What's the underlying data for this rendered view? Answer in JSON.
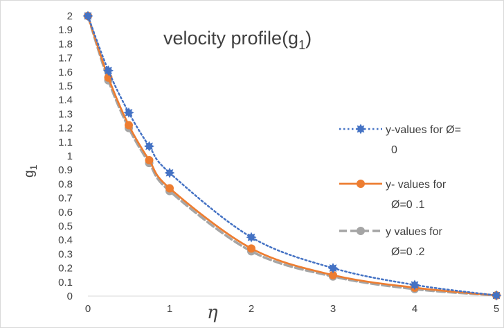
{
  "chart_data": {
    "type": "line",
    "title": "velocity profile(g",
    "title_subscript": "1",
    "title_suffix": ")",
    "xlabel": "η",
    "ylabel": "g",
    "ylabel_subscript": "1",
    "xlim": [
      0,
      5
    ],
    "ylim": [
      0,
      2
    ],
    "x_ticks": [
      "0",
      "1",
      "2",
      "3",
      "4",
      "5"
    ],
    "y_ticks": [
      "0",
      "0.1",
      "0.2",
      "0.3",
      "0.4",
      "0.5",
      "0.6",
      "0.7",
      "0.8",
      "0.9",
      "1",
      "1.1",
      "1.2",
      "1.3",
      "1.4",
      "1.5",
      "1.6",
      "1.7",
      "1.8",
      "1.9",
      "2"
    ],
    "grid": false,
    "legend_position": "right",
    "x": [
      0,
      0.25,
      0.5,
      0.75,
      1,
      2,
      3,
      4,
      5
    ],
    "series": [
      {
        "name_lines": [
          "y-values for Ø=",
          "0"
        ],
        "color": "#4472c4",
        "style": "dotted",
        "marker": "star",
        "values": [
          2.0,
          1.61,
          1.31,
          1.07,
          0.88,
          0.42,
          0.2,
          0.08,
          0.005
        ]
      },
      {
        "name_lines": [
          "y- values for",
          "Ø=0  .1"
        ],
        "color": "#ed7d31",
        "style": "solid",
        "marker": "circle",
        "values": [
          2.0,
          1.56,
          1.22,
          0.97,
          0.77,
          0.34,
          0.15,
          0.06,
          0.005
        ]
      },
      {
        "name_lines": [
          "y values for",
          "Ø=0 .2"
        ],
        "color": "#a5a5a5",
        "style": "dashed",
        "marker": "circle",
        "values": [
          2.0,
          1.54,
          1.2,
          0.95,
          0.75,
          0.32,
          0.14,
          0.05,
          0.005
        ]
      }
    ]
  }
}
